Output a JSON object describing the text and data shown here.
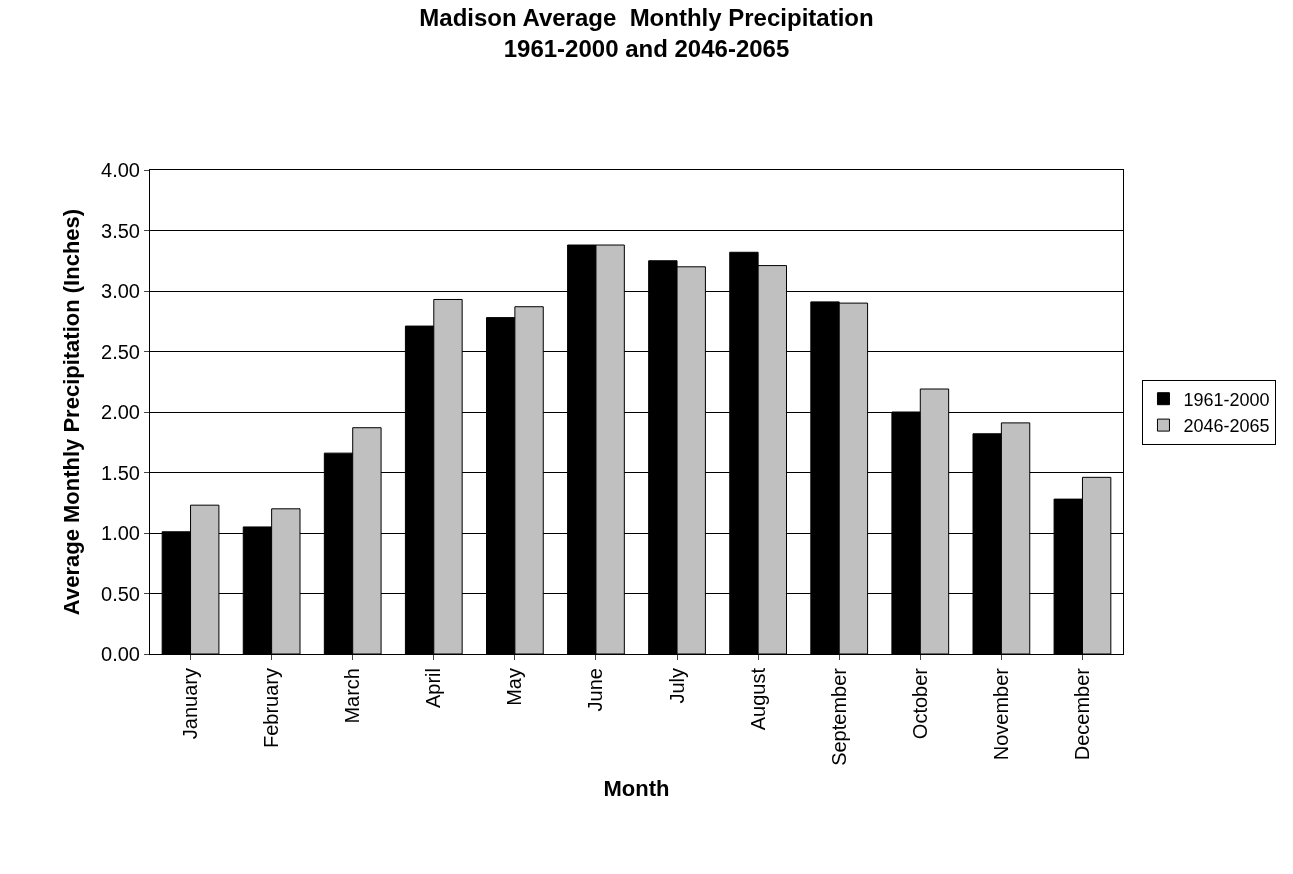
{
  "chart_data": {
    "type": "bar",
    "title": "Madison Average  Monthly Precipitation\n1961-2000 and 2046-2065",
    "xlabel": "Month",
    "ylabel": "Average Monthly Precipitation (Inches)",
    "categories": [
      "January",
      "February",
      "March",
      "April",
      "May",
      "June",
      "July",
      "August",
      "September",
      "October",
      "November",
      "December"
    ],
    "series": [
      {
        "name": "1961-2000",
        "color": "#000000",
        "values": [
          1.01,
          1.05,
          1.66,
          2.71,
          2.78,
          3.38,
          3.25,
          3.32,
          2.91,
          2.0,
          1.82,
          1.28
        ]
      },
      {
        "name": "2046-2065",
        "color": "#c0c0c0",
        "values": [
          1.23,
          1.2,
          1.87,
          2.93,
          2.87,
          3.38,
          3.2,
          3.21,
          2.9,
          2.19,
          1.91,
          1.46
        ]
      }
    ],
    "ylim": [
      0,
      4
    ],
    "yticks": [
      {
        "value": 0,
        "label": "0.00"
      },
      {
        "value": 0.5,
        "label": "0.50"
      },
      {
        "value": 1,
        "label": "1.00"
      },
      {
        "value": 1.5,
        "label": "1.50"
      },
      {
        "value": 2,
        "label": "2.00"
      },
      {
        "value": 2.5,
        "label": "2.50"
      },
      {
        "value": 3,
        "label": "3.00"
      },
      {
        "value": 3.5,
        "label": "3.50"
      },
      {
        "value": 4,
        "label": "4.00"
      }
    ],
    "grid": "y",
    "legend": "right"
  }
}
